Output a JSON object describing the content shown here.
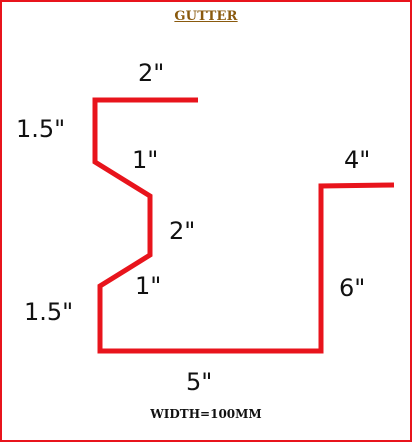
{
  "title": "GUTTER",
  "footer": "WIDTH=100MM",
  "stroke_color": "#e8141c",
  "dimensions": {
    "top_flange": "2\"",
    "upper_left_side": "1.5\"",
    "upper_bevel": "1\"",
    "middle_side": "2\"",
    "lower_bevel": "1\"",
    "lower_left_side": "1.5\"",
    "bottom": "5\"",
    "right_side": "6\"",
    "right_flange": "4\""
  }
}
